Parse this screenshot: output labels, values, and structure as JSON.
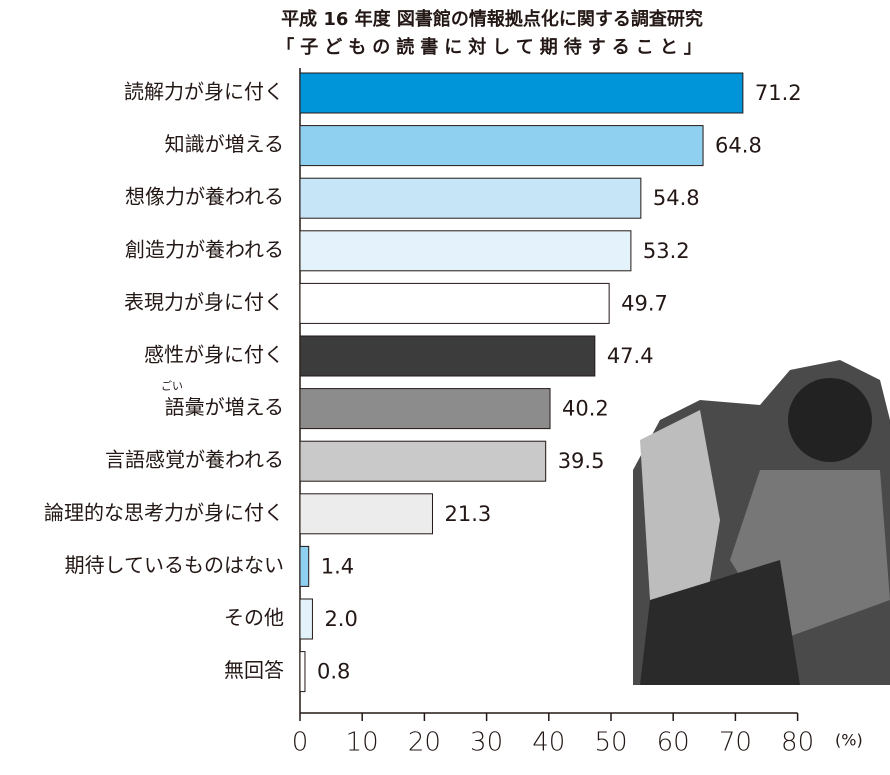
{
  "chart_data": {
    "type": "barh",
    "title": "平成 16 年度 図書館の情報拠点化に関する調査研究",
    "subtitle": "「子どもの読書に対して期待すること」",
    "categories": [
      "読解力が身に付く",
      "知識が増える",
      "想像力が養われる",
      "創造力が養われる",
      "表現力が身に付く",
      "感性が身に付く",
      "語彙が増える",
      "言語感覚が養われる",
      "論理的な思考力が身に付く",
      "期待しているものはない",
      "その他",
      "無回答"
    ],
    "annotation": "ごい",
    "values": [
      71.2,
      64.8,
      54.8,
      53.2,
      49.7,
      47.4,
      40.2,
      39.5,
      21.3,
      1.4,
      2.0,
      0.8
    ],
    "value_labels": [
      "71.2",
      "64.8",
      "54.8",
      "53.2",
      "49.7",
      "47.4",
      "40.2",
      "39.5",
      "21.3",
      "1.4",
      "2.0",
      "0.8"
    ],
    "colors": [
      "#0095d9",
      "#8fd0f0",
      "#c6e6f7",
      "#e4f3fb",
      "#ffffff",
      "#3c3c3c",
      "#8c8c8c",
      "#c9c9c9",
      "#ececec",
      "#8fd0f0",
      "#e4f3fb",
      "#ffffff"
    ],
    "x_label": "(%)",
    "xlim": [
      0,
      80
    ],
    "xticks": [
      0,
      10,
      20,
      30,
      40,
      50,
      60,
      70,
      80
    ]
  }
}
